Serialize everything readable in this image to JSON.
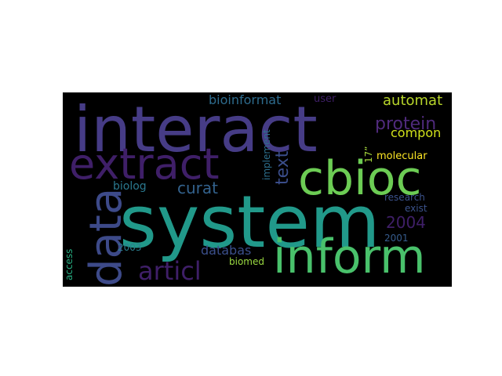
{
  "colors": {
    "page_background": "#ffffff",
    "cloud_background": "#000000"
  },
  "words": [
    {
      "text": "interact",
      "color": "#463c86"
    },
    {
      "text": "system",
      "color": "#21998a"
    },
    {
      "text": "extract",
      "color": "#3f1f68"
    },
    {
      "text": "cbioc",
      "color": "#6ccc54"
    },
    {
      "text": "inform",
      "color": "#49c16b"
    },
    {
      "text": "data",
      "color": "#3d4a89"
    },
    {
      "text": "protein",
      "color": "#4f2a7c"
    },
    {
      "text": "articl",
      "color": "#3f1f68"
    },
    {
      "text": "curat",
      "color": "#33628d"
    },
    {
      "text": "text",
      "color": "#3a4d8a"
    },
    {
      "text": "automat",
      "color": "#b7d52b"
    },
    {
      "text": "bioinformat",
      "color": "#2e6c8e"
    },
    {
      "text": "2004",
      "color": "#3f1f68"
    },
    {
      "text": "databas",
      "color": "#3b4f8b"
    },
    {
      "text": "compon",
      "color": "#d2e21b"
    },
    {
      "text": "biolog",
      "color": "#2a788e"
    },
    {
      "text": "user",
      "color": "#3f1f68"
    },
    {
      "text": "molecular",
      "color": "#fde725"
    },
    {
      "text": "implement",
      "color": "#2d708e"
    },
    {
      "text": "17”",
      "color": "#a3d63b"
    },
    {
      "text": "research",
      "color": "#3b528b"
    },
    {
      "text": "exist",
      "color": "#3b528b"
    },
    {
      "text": "2003",
      "color": "#2b7e8e"
    },
    {
      "text": "biomed",
      "color": "#9ad941"
    },
    {
      "text": "2001",
      "color": "#365c8d"
    },
    {
      "text": "access",
      "color": "#27ad81"
    }
  ]
}
